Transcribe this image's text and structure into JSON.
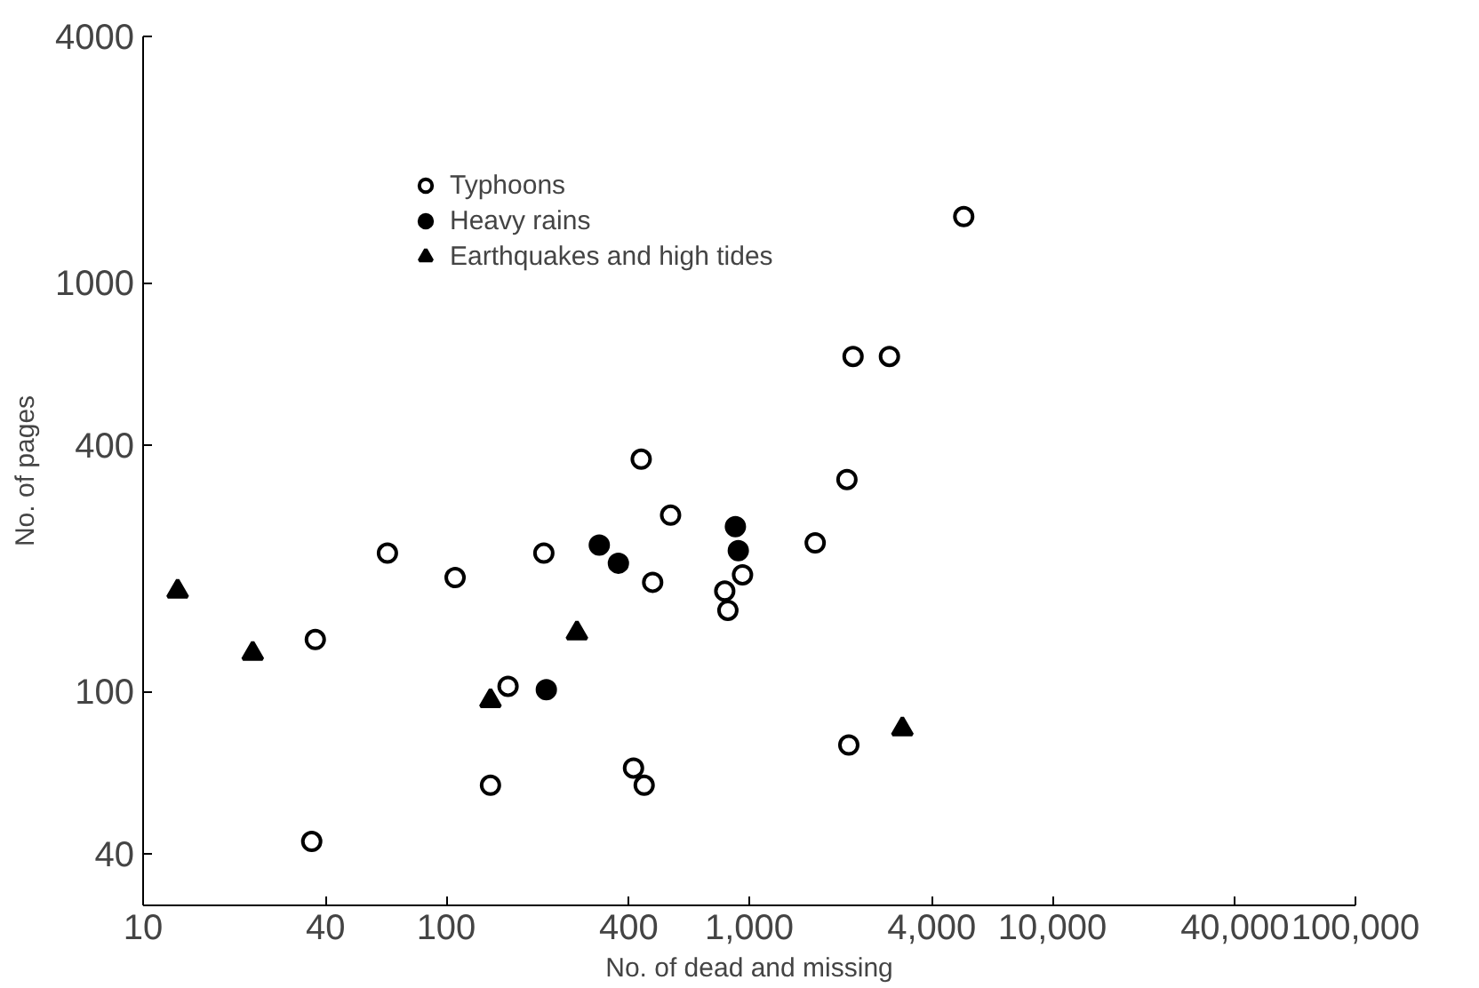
{
  "chart_data": {
    "type": "scatter",
    "xlabel": "No. of dead and missing",
    "ylabel": "No. of pages",
    "log": "xy",
    "grid": false,
    "legend": "top left",
    "xlim": [
      10,
      100000
    ],
    "ylim": [
      30,
      4000
    ],
    "xticks": [
      10,
      40,
      100,
      400,
      {
        "value": 1000,
        "label": "1,000"
      },
      {
        "value": 4000,
        "label": "4,000"
      },
      {
        "value": 10000,
        "label": "10,000"
      },
      {
        "value": 40000,
        "label": "40,000"
      },
      {
        "value": 100000,
        "label": "100,000"
      }
    ],
    "yticks": [
      40,
      100,
      400,
      1000,
      4000
    ],
    "series": [
      {
        "name": "Typhoons",
        "color": "#000000",
        "marker": "circle_open",
        "x": [
          64,
          107,
          210,
          550,
          480,
          830,
          850,
          950,
          1650,
          37,
          160,
          140,
          415,
          450,
          36,
          2130,
          5100,
          2200,
          2900,
          2100,
          440
        ],
        "values": [
          218,
          190,
          218,
          270,
          185,
          176,
          158,
          193,
          231,
          134,
          103,
          59,
          65,
          59,
          43,
          74,
          1450,
          660,
          660,
          330,
          370
        ]
      },
      {
        "name": "Heavy rains",
        "color": "#000000",
        "marker": "circle",
        "x": [
          320,
          370,
          900,
          920,
          214
        ],
        "values": [
          228,
          206,
          253,
          221,
          101
        ]
      },
      {
        "name": "Earthquakes and high tides",
        "color": "#000000",
        "marker": "triangle",
        "x": [
          13,
          23,
          270,
          140,
          3200
        ],
        "values": [
          176,
          124,
          139,
          95,
          81
        ]
      }
    ]
  }
}
